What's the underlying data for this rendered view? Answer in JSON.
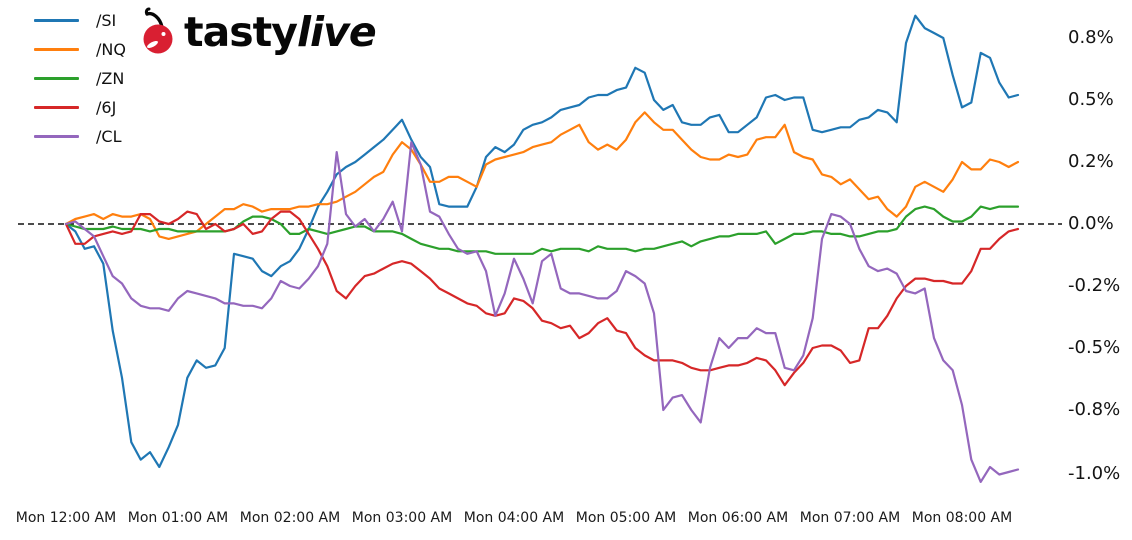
{
  "logo": {
    "brand_prefix": "tasty",
    "brand_suffix": "live",
    "icon": "cherry-icon",
    "cherry_color": "#d91f32",
    "text_color": "#070707"
  },
  "chart_data": {
    "type": "line",
    "title": "",
    "xlabel": "",
    "ylabel": "",
    "grid": false,
    "legend_position": "upper-left",
    "zero_line_style": "dashed",
    "ylim": [
      -1.1,
      0.9
    ],
    "x_start_label": "Mon 12:00 AM",
    "x_interval_minutes": 5,
    "x_axis": {
      "tick_labels": [
        "Mon 12:00 AM",
        "Mon 01:00 AM",
        "Mon 02:00 AM",
        "Mon 03:00 AM",
        "Mon 04:00 AM",
        "Mon 05:00 AM",
        "Mon 06:00 AM",
        "Mon 07:00 AM",
        "Mon 08:00 AM"
      ]
    },
    "y_axis": {
      "side": "right",
      "unit": "%",
      "tick_labels": [
        "0.8%",
        "0.5%",
        "0.2%",
        "0.0%",
        "-0.2%",
        "-0.5%",
        "-0.8%",
        "-1.0%"
      ],
      "tick_values": [
        0.75,
        0.5,
        0.25,
        0.0,
        -0.25,
        -0.5,
        -0.75,
        -1.0
      ]
    },
    "series": [
      {
        "name": "/SI",
        "color": "#1f77b4",
        "values": [
          0.0,
          -0.03,
          -0.1,
          -0.09,
          -0.16,
          -0.43,
          -0.62,
          -0.88,
          -0.95,
          -0.92,
          -0.98,
          -0.9,
          -0.81,
          -0.62,
          -0.55,
          -0.58,
          -0.57,
          -0.5,
          -0.12,
          -0.13,
          -0.14,
          -0.19,
          -0.21,
          -0.17,
          -0.15,
          -0.1,
          -0.02,
          0.07,
          0.13,
          0.2,
          0.23,
          0.25,
          0.28,
          0.31,
          0.34,
          0.38,
          0.42,
          0.34,
          0.27,
          0.23,
          0.08,
          0.07,
          0.07,
          0.07,
          0.15,
          0.27,
          0.31,
          0.29,
          0.32,
          0.38,
          0.4,
          0.41,
          0.43,
          0.46,
          0.47,
          0.48,
          0.51,
          0.52,
          0.52,
          0.54,
          0.55,
          0.63,
          0.61,
          0.5,
          0.46,
          0.48,
          0.41,
          0.4,
          0.4,
          0.43,
          0.44,
          0.37,
          0.37,
          0.4,
          0.43,
          0.51,
          0.52,
          0.5,
          0.51,
          0.51,
          0.38,
          0.37,
          0.38,
          0.39,
          0.39,
          0.42,
          0.43,
          0.46,
          0.45,
          0.41,
          0.73,
          0.84,
          0.79,
          0.77,
          0.75,
          0.6,
          0.47,
          0.49,
          0.69,
          0.67,
          0.57,
          0.51,
          0.52
        ]
      },
      {
        "name": "/NQ",
        "color": "#ff7f0e",
        "values": [
          0.0,
          0.02,
          0.03,
          0.04,
          0.02,
          0.04,
          0.03,
          0.03,
          0.04,
          0.02,
          -0.05,
          -0.06,
          -0.05,
          -0.04,
          -0.03,
          0.0,
          0.03,
          0.06,
          0.06,
          0.08,
          0.07,
          0.05,
          0.06,
          0.06,
          0.06,
          0.07,
          0.07,
          0.08,
          0.08,
          0.09,
          0.11,
          0.13,
          0.16,
          0.19,
          0.21,
          0.28,
          0.33,
          0.3,
          0.24,
          0.17,
          0.17,
          0.19,
          0.19,
          0.17,
          0.15,
          0.24,
          0.26,
          0.27,
          0.28,
          0.29,
          0.31,
          0.32,
          0.33,
          0.36,
          0.38,
          0.4,
          0.33,
          0.3,
          0.32,
          0.3,
          0.34,
          0.41,
          0.45,
          0.41,
          0.38,
          0.38,
          0.34,
          0.3,
          0.27,
          0.26,
          0.26,
          0.28,
          0.27,
          0.28,
          0.34,
          0.35,
          0.35,
          0.4,
          0.29,
          0.27,
          0.26,
          0.2,
          0.19,
          0.16,
          0.18,
          0.14,
          0.1,
          0.11,
          0.06,
          0.03,
          0.07,
          0.15,
          0.17,
          0.15,
          0.13,
          0.18,
          0.25,
          0.22,
          0.22,
          0.26,
          0.25,
          0.23,
          0.25
        ]
      },
      {
        "name": "/ZN",
        "color": "#2ca02c",
        "values": [
          0.0,
          -0.01,
          -0.02,
          -0.02,
          -0.02,
          -0.01,
          -0.02,
          -0.02,
          -0.02,
          -0.03,
          -0.02,
          -0.02,
          -0.03,
          -0.03,
          -0.03,
          -0.03,
          -0.03,
          -0.03,
          -0.02,
          0.01,
          0.03,
          0.03,
          0.02,
          0.0,
          -0.04,
          -0.04,
          -0.02,
          -0.03,
          -0.04,
          -0.03,
          -0.02,
          -0.01,
          -0.01,
          -0.03,
          -0.03,
          -0.03,
          -0.04,
          -0.06,
          -0.08,
          -0.09,
          -0.1,
          -0.1,
          -0.11,
          -0.11,
          -0.11,
          -0.11,
          -0.12,
          -0.12,
          -0.12,
          -0.12,
          -0.12,
          -0.1,
          -0.11,
          -0.1,
          -0.1,
          -0.1,
          -0.11,
          -0.09,
          -0.1,
          -0.1,
          -0.1,
          -0.11,
          -0.1,
          -0.1,
          -0.09,
          -0.08,
          -0.07,
          -0.09,
          -0.07,
          -0.06,
          -0.05,
          -0.05,
          -0.04,
          -0.04,
          -0.04,
          -0.03,
          -0.08,
          -0.06,
          -0.04,
          -0.04,
          -0.03,
          -0.03,
          -0.04,
          -0.04,
          -0.05,
          -0.05,
          -0.04,
          -0.03,
          -0.03,
          -0.02,
          0.03,
          0.06,
          0.07,
          0.06,
          0.03,
          0.01,
          0.01,
          0.03,
          0.07,
          0.06,
          0.07,
          0.07,
          0.07
        ]
      },
      {
        "name": "/6J",
        "color": "#d62728",
        "values": [
          0.0,
          -0.08,
          -0.08,
          -0.05,
          -0.04,
          -0.03,
          -0.04,
          -0.03,
          0.04,
          0.04,
          0.01,
          0.0,
          0.02,
          0.05,
          0.04,
          -0.02,
          0.0,
          -0.03,
          -0.02,
          0.0,
          -0.04,
          -0.03,
          0.02,
          0.05,
          0.05,
          0.02,
          -0.04,
          -0.1,
          -0.17,
          -0.27,
          -0.3,
          -0.25,
          -0.21,
          -0.2,
          -0.18,
          -0.16,
          -0.15,
          -0.16,
          -0.19,
          -0.22,
          -0.26,
          -0.28,
          -0.3,
          -0.32,
          -0.33,
          -0.36,
          -0.37,
          -0.36,
          -0.3,
          -0.31,
          -0.34,
          -0.39,
          -0.4,
          -0.42,
          -0.41,
          -0.46,
          -0.44,
          -0.4,
          -0.38,
          -0.43,
          -0.44,
          -0.5,
          -0.53,
          -0.55,
          -0.55,
          -0.55,
          -0.56,
          -0.58,
          -0.59,
          -0.59,
          -0.58,
          -0.57,
          -0.57,
          -0.56,
          -0.54,
          -0.55,
          -0.59,
          -0.65,
          -0.6,
          -0.56,
          -0.5,
          -0.49,
          -0.49,
          -0.51,
          -0.56,
          -0.55,
          -0.42,
          -0.42,
          -0.37,
          -0.3,
          -0.25,
          -0.22,
          -0.22,
          -0.23,
          -0.23,
          -0.24,
          -0.24,
          -0.19,
          -0.1,
          -0.1,
          -0.06,
          -0.03,
          -0.02
        ]
      },
      {
        "name": "/CL",
        "color": "#9467bd",
        "values": [
          0.0,
          0.01,
          -0.02,
          -0.05,
          -0.13,
          -0.21,
          -0.24,
          -0.3,
          -0.33,
          -0.34,
          -0.34,
          -0.35,
          -0.3,
          -0.27,
          -0.28,
          -0.29,
          -0.3,
          -0.32,
          -0.32,
          -0.33,
          -0.33,
          -0.34,
          -0.3,
          -0.23,
          -0.25,
          -0.26,
          -0.22,
          -0.17,
          -0.08,
          0.29,
          0.04,
          -0.01,
          0.02,
          -0.03,
          0.02,
          0.09,
          -0.03,
          0.33,
          0.24,
          0.05,
          0.03,
          -0.04,
          -0.1,
          -0.12,
          -0.11,
          -0.19,
          -0.37,
          -0.28,
          -0.14,
          -0.22,
          -0.32,
          -0.15,
          -0.12,
          -0.26,
          -0.28,
          -0.28,
          -0.29,
          -0.3,
          -0.3,
          -0.27,
          -0.19,
          -0.21,
          -0.24,
          -0.36,
          -0.75,
          -0.7,
          -0.69,
          -0.75,
          -0.8,
          -0.58,
          -0.46,
          -0.5,
          -0.46,
          -0.46,
          -0.42,
          -0.44,
          -0.44,
          -0.58,
          -0.59,
          -0.53,
          -0.38,
          -0.06,
          0.04,
          0.03,
          0.0,
          -0.1,
          -0.17,
          -0.19,
          -0.18,
          -0.2,
          -0.27,
          -0.28,
          -0.26,
          -0.46,
          -0.55,
          -0.59,
          -0.73,
          -0.95,
          -1.04,
          -0.98,
          -1.01,
          -1.0,
          -0.99
        ]
      }
    ]
  }
}
